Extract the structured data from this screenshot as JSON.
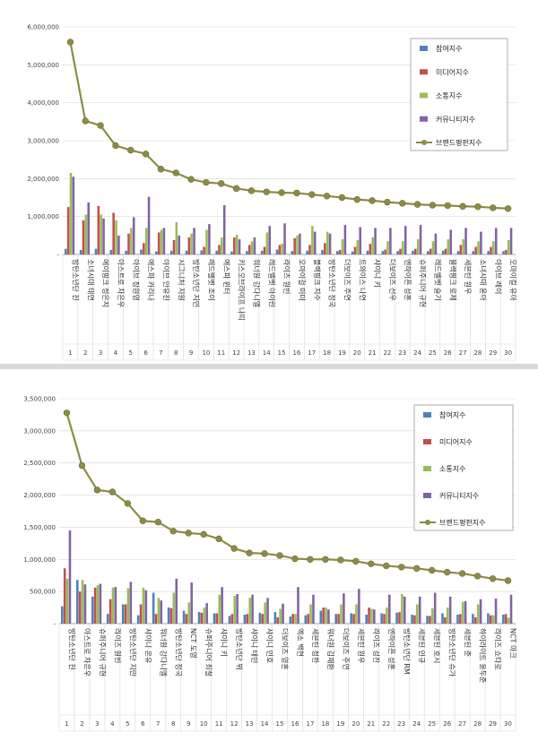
{
  "colors": {
    "participation": "#4f81bd",
    "media": "#c0504d",
    "communication": "#9bbb59",
    "community": "#8064a2",
    "brand": "#8c8c46",
    "grid": "#d9d9d9",
    "axis": "#888888"
  },
  "chart_data": [
    {
      "type": "bar",
      "ylim": [
        0,
        6000000
      ],
      "yticks": [
        "-",
        "1,000,000",
        "2,000,000",
        "3,000,000",
        "4,000,000",
        "5,000,000",
        "6,000,000"
      ],
      "legend_position": "top-right",
      "grid": true,
      "numbers": [
        "1",
        "2",
        "3",
        "4",
        "5",
        "6",
        "7",
        "8",
        "9",
        "10",
        "11",
        "12",
        "13",
        "14",
        "15",
        "16",
        "17",
        "18",
        "19",
        "20",
        "21",
        "22",
        "23",
        "24",
        "25",
        "26",
        "27",
        "28",
        "29",
        "30"
      ],
      "categories": [
        "방탄소년단 진",
        "소녀시대 태연",
        "에이핑크 정은지",
        "아스트로 차은우",
        "아이브 장원영",
        "에스파 카리나",
        "아이브 안유진",
        "시그니처 지원",
        "방탄소년단 지민",
        "레드벨벳 조이",
        "에스파 윈터",
        "키스오브라이프 나띠",
        "워너원 강다니엘",
        "레드벨벳 아이린",
        "라이즈 원빈",
        "오마이걸 미미",
        "블랙핑크 지수",
        "방탄소년단 정국",
        "더보이즈 주연",
        "트와이스 나연",
        "샤이니 키",
        "더보이즈 선우",
        "엔하이픈 성훈",
        "슈퍼주니어 규현",
        "레드벨벳 슬기",
        "블랙핑크 로제",
        "세븐틴 원우",
        "소녀시대 윤아",
        "아이브 레이",
        "오마이걸 유아"
      ],
      "series": [
        {
          "name": "참여지수",
          "values": [
            150000,
            120000,
            150000,
            120000,
            100000,
            130000,
            80000,
            100000,
            100000,
            110000,
            100000,
            80000,
            90000,
            100000,
            130000,
            90000,
            100000,
            120000,
            90000,
            80000,
            100000,
            90000,
            90000,
            100000,
            90000,
            100000,
            90000,
            90000,
            90000,
            90000
          ]
        },
        {
          "name": "미디어지수",
          "values": [
            1250000,
            900000,
            1280000,
            1100000,
            550000,
            300000,
            580000,
            380000,
            450000,
            200000,
            250000,
            450000,
            250000,
            200000,
            250000,
            430000,
            250000,
            300000,
            120000,
            200000,
            280000,
            130000,
            150000,
            150000,
            150000,
            150000,
            250000,
            200000,
            200000,
            120000
          ]
        },
        {
          "name": "소통지수",
          "values": [
            2150000,
            1050000,
            1050000,
            900000,
            700000,
            700000,
            650000,
            850000,
            550000,
            650000,
            450000,
            520000,
            350000,
            580000,
            280000,
            500000,
            750000,
            600000,
            400000,
            380000,
            450000,
            350000,
            350000,
            400000,
            350000,
            400000,
            400000,
            350000,
            350000,
            380000
          ]
        },
        {
          "name": "커뮤니티지수",
          "values": [
            2050000,
            1370000,
            950000,
            500000,
            980000,
            1520000,
            700000,
            500000,
            700000,
            800000,
            1300000,
            400000,
            450000,
            750000,
            820000,
            550000,
            600000,
            550000,
            780000,
            720000,
            700000,
            700000,
            750000,
            780000,
            550000,
            650000,
            700000,
            600000,
            700000,
            700000
          ]
        },
        {
          "name": "브랜드평판지수",
          "values": [
            5600000,
            3520000,
            3400000,
            2870000,
            2750000,
            2650000,
            2250000,
            2150000,
            1980000,
            1900000,
            1870000,
            1740000,
            1680000,
            1650000,
            1630000,
            1620000,
            1580000,
            1540000,
            1500000,
            1450000,
            1420000,
            1380000,
            1350000,
            1320000,
            1300000,
            1290000,
            1270000,
            1260000,
            1230000,
            1210000
          ]
        }
      ]
    },
    {
      "type": "bar",
      "ylim": [
        0,
        3500000
      ],
      "yticks": [
        "-",
        "500,000",
        "1,000,000",
        "1,500,000",
        "2,000,000",
        "2,500,000",
        "3,000,000",
        "3,500,000"
      ],
      "legend_position": "top-right",
      "grid": true,
      "numbers": [
        "1",
        "2",
        "3",
        "4",
        "5",
        "6",
        "7",
        "8",
        "9",
        "10",
        "11",
        "12",
        "13",
        "14",
        "15",
        "16",
        "17",
        "18",
        "19",
        "20",
        "21",
        "22",
        "23",
        "24",
        "25",
        "26",
        "27",
        "28",
        "29",
        "30"
      ],
      "categories": [
        "방탄소년단 진",
        "아스트로 차은우",
        "슈퍼주니어 규현",
        "라이즈 원빈",
        "방탄소년단 지민",
        "샤이니 온유",
        "워너원 강다니엘",
        "방탄소년단 정국",
        "NCT 도영",
        "슈퍼주니어 최철",
        "샤이니 키",
        "방탄소년단 뷔",
        "샤이니 태민",
        "샤이니 민호",
        "더보이즈 영훈",
        "엑소 백현",
        "세븐틴 정한",
        "워너원 김재환",
        "더보이즈 주연",
        "세븐틴 원우",
        "라이즈 성찬",
        "엔하이픈 성훈",
        "방탄소년단 RM",
        "세븐틴 민규",
        "세븐틴 호시",
        "방탄소년단 슈가",
        "세븐틴 준",
        "하이라이트 윤두준",
        "라이즈 쇼타로",
        "NCT 마크"
      ],
      "series": [
        {
          "name": "참여지수",
          "values": [
            270000,
            680000,
            420000,
            150000,
            300000,
            130000,
            480000,
            250000,
            200000,
            180000,
            160000,
            120000,
            140000,
            170000,
            180000,
            110000,
            130000,
            200000,
            150000,
            160000,
            140000,
            160000,
            170000,
            140000,
            120000,
            160000,
            140000,
            150000,
            160000,
            140000
          ]
        },
        {
          "name": "미디어지수",
          "values": [
            860000,
            500000,
            560000,
            380000,
            300000,
            300000,
            150000,
            240000,
            150000,
            170000,
            160000,
            150000,
            150000,
            150000,
            100000,
            150000,
            150000,
            250000,
            150000,
            150000,
            250000,
            150000,
            180000,
            130000,
            120000,
            100000,
            150000,
            100000,
            130000,
            150000
          ]
        },
        {
          "name": "소통지수",
          "values": [
            700000,
            680000,
            600000,
            560000,
            550000,
            560000,
            400000,
            480000,
            330000,
            250000,
            450000,
            430000,
            400000,
            330000,
            230000,
            150000,
            300000,
            250000,
            300000,
            300000,
            230000,
            250000,
            460000,
            300000,
            240000,
            250000,
            340000,
            300000,
            130000,
            90000
          ]
        },
        {
          "name": "커뮤니티지수",
          "values": [
            1450000,
            610000,
            620000,
            570000,
            650000,
            520000,
            360000,
            700000,
            640000,
            320000,
            570000,
            460000,
            450000,
            400000,
            310000,
            570000,
            450000,
            220000,
            470000,
            540000,
            220000,
            450000,
            420000,
            420000,
            480000,
            420000,
            350000,
            380000,
            390000,
            450000
          ]
        },
        {
          "name": "브랜드평판지수",
          "values": [
            3280000,
            2460000,
            2080000,
            2050000,
            1870000,
            1600000,
            1580000,
            1440000,
            1410000,
            1390000,
            1320000,
            1170000,
            1100000,
            1090000,
            1060000,
            1010000,
            1000000,
            1000000,
            990000,
            970000,
            930000,
            900000,
            880000,
            860000,
            830000,
            800000,
            780000,
            740000,
            700000,
            670000
          ]
        }
      ]
    }
  ]
}
